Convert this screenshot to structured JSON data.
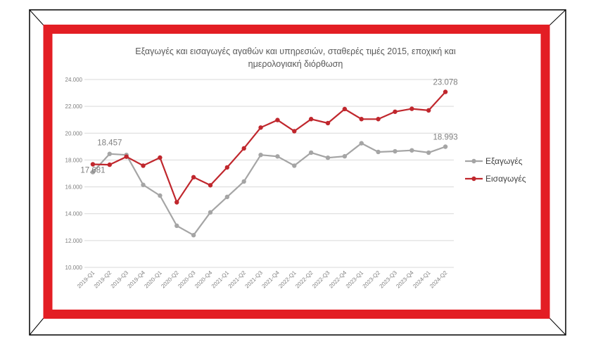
{
  "chart_data": {
    "type": "line",
    "title_lines": [
      "Εξαγωγές και εισαγωγές αγαθών και υπηρεσιών, σταθερές τιμές 2015, εποχική και",
      "ημερολογιακή διόρθωση"
    ],
    "categories": [
      "2019-Q1",
      "2019-Q2",
      "2019-Q3",
      "2019-Q4",
      "2020-Q1",
      "2020-Q2",
      "2020-Q3",
      "2020-Q4",
      "2021-Q1",
      "2021-Q2",
      "2021-Q3",
      "2021-Q4",
      "2022-Q1",
      "2022-Q2",
      "2022-Q3",
      "2022-Q4",
      "2023-Q1",
      "2023-Q2",
      "2023-Q3",
      "2023-Q4",
      "2024-Q1",
      "2024-Q2"
    ],
    "y_ticks": [
      "10.000",
      "12.000",
      "14.000",
      "16.000",
      "18.000",
      "20.000",
      "22.000",
      "24.000"
    ],
    "ylim": [
      10000,
      24000
    ],
    "grid": true,
    "legend_position": "right",
    "series": [
      {
        "name": "Εξαγωγές",
        "color": "#a5a5a5",
        "values": [
          17100,
          18457,
          18380,
          16150,
          15350,
          13100,
          12400,
          14100,
          15250,
          16400,
          18380,
          18270,
          17580,
          18550,
          18170,
          18280,
          19250,
          18600,
          18650,
          18720,
          18550,
          18993
        ]
      },
      {
        "name": "Εισαγωγές",
        "color": "#c0272d",
        "values": [
          17681,
          17650,
          18250,
          17580,
          18180,
          14850,
          16720,
          16120,
          17450,
          18870,
          20420,
          20980,
          20150,
          21050,
          20750,
          21800,
          21050,
          21050,
          21600,
          21820,
          21700,
          23078
        ]
      }
    ],
    "data_labels": [
      {
        "series": 0,
        "index": 1,
        "text": "18.457"
      },
      {
        "series": 1,
        "index": 0,
        "text": "17.681"
      },
      {
        "series": 1,
        "index": 21,
        "text": "23.078"
      },
      {
        "series": 0,
        "index": 21,
        "text": "18.993"
      }
    ]
  }
}
